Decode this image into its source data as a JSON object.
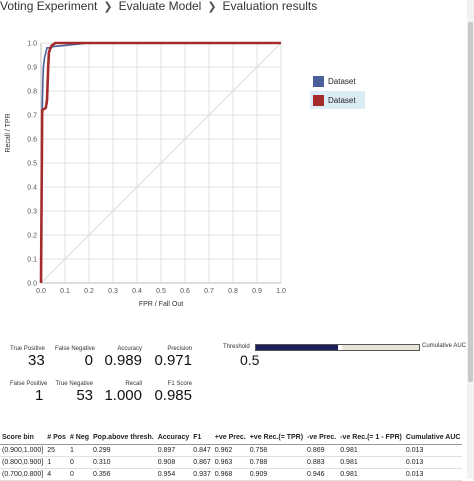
{
  "breadcrumb": [
    "Voting Experiment",
    "Evaluate Model",
    "Evaluation results"
  ],
  "chart_data": {
    "type": "line",
    "xlabel": "FPR / Fall Out",
    "ylabel": "Recall / TPR",
    "xlim": [
      0,
      1
    ],
    "ylim": [
      0,
      1
    ],
    "grid": true,
    "legend_placement": "right",
    "x_ticks": [
      "0.0",
      "0.1",
      "0.2",
      "0.3",
      "0.4",
      "0.5",
      "0.6",
      "0.7",
      "0.8",
      "0.9",
      "1.0"
    ],
    "y_ticks": [
      "0.0",
      "0.1",
      "0.2",
      "0.3",
      "0.4",
      "0.5",
      "0.6",
      "0.7",
      "0.8",
      "0.9",
      "1.0"
    ],
    "series": [
      {
        "name": "Dataset",
        "color": "#4a5e9a",
        "points": [
          [
            0,
            0
          ],
          [
            0.003,
            0.6
          ],
          [
            0.005,
            0.72
          ],
          [
            0.008,
            0.85
          ],
          [
            0.01,
            0.9
          ],
          [
            0.015,
            0.94
          ],
          [
            0.02,
            0.96
          ],
          [
            0.025,
            0.98
          ],
          [
            0.04,
            0.98
          ],
          [
            0.05,
            0.985
          ],
          [
            0.1,
            0.99
          ],
          [
            0.2,
            1.0
          ],
          [
            1.0,
            1.0
          ]
        ]
      },
      {
        "name": "Dataset",
        "color": "#a52a2a",
        "points": [
          [
            0,
            0
          ],
          [
            0.005,
            0.72
          ],
          [
            0.02,
            0.73
          ],
          [
            0.025,
            0.76
          ],
          [
            0.03,
            0.9
          ],
          [
            0.033,
            0.96
          ],
          [
            0.04,
            0.98
          ],
          [
            0.045,
            0.99
          ],
          [
            0.06,
            1.0
          ],
          [
            1.0,
            1.0
          ]
        ]
      }
    ]
  },
  "metrics": {
    "true_positive": {
      "label": "True Positive",
      "value": "33"
    },
    "false_negative": {
      "label": "False Negative",
      "value": "0"
    },
    "accuracy": {
      "label": "Accuracy",
      "value": "0.989"
    },
    "precision": {
      "label": "Precision",
      "value": "0.971"
    },
    "false_positive": {
      "label": "False Positive",
      "value": "1"
    },
    "true_negative": {
      "label": "True Negative",
      "value": "53"
    },
    "recall": {
      "label": "Recall",
      "value": "1.000"
    },
    "f1": {
      "label": "F1 Score",
      "value": "0.985"
    }
  },
  "threshold": {
    "label": "Threshold",
    "value": "0.5",
    "position": 0.5,
    "cumulative_auc_label": "Cumulative AUC"
  },
  "colors": {
    "grid": "#e1e1e1",
    "diagonal": "#dcdcdc",
    "threshold_fill": "#1e1f5e",
    "threshold_rest": "#e6e3d8"
  },
  "bins": {
    "headers": [
      "Score bin",
      "# Pos",
      "# Neg",
      "Pop.above thresh.",
      "Accuracy",
      "F1",
      "+ve Prec.",
      "+ve Rec.(= TPR)",
      "-ve Prec.",
      "-ve Rec.(= 1 - FPR)",
      "Cumulative AUC"
    ],
    "rows": [
      [
        "(0.900,1.000]",
        "25",
        "1",
        "0.299",
        "0.897",
        "0.847",
        "0.962",
        "0.758",
        "0.869",
        "0.981",
        "0.013"
      ],
      [
        "(0.800,0.900]",
        "1",
        "0",
        "0.310",
        "0.908",
        "0.867",
        "0.963",
        "0.788",
        "0.883",
        "0.981",
        "0.013"
      ],
      [
        "(0.700,0.800]",
        "4",
        "0",
        "0.356",
        "0.954",
        "0.937",
        "0.968",
        "0.909",
        "0.946",
        "0.981",
        "0.013"
      ]
    ]
  }
}
